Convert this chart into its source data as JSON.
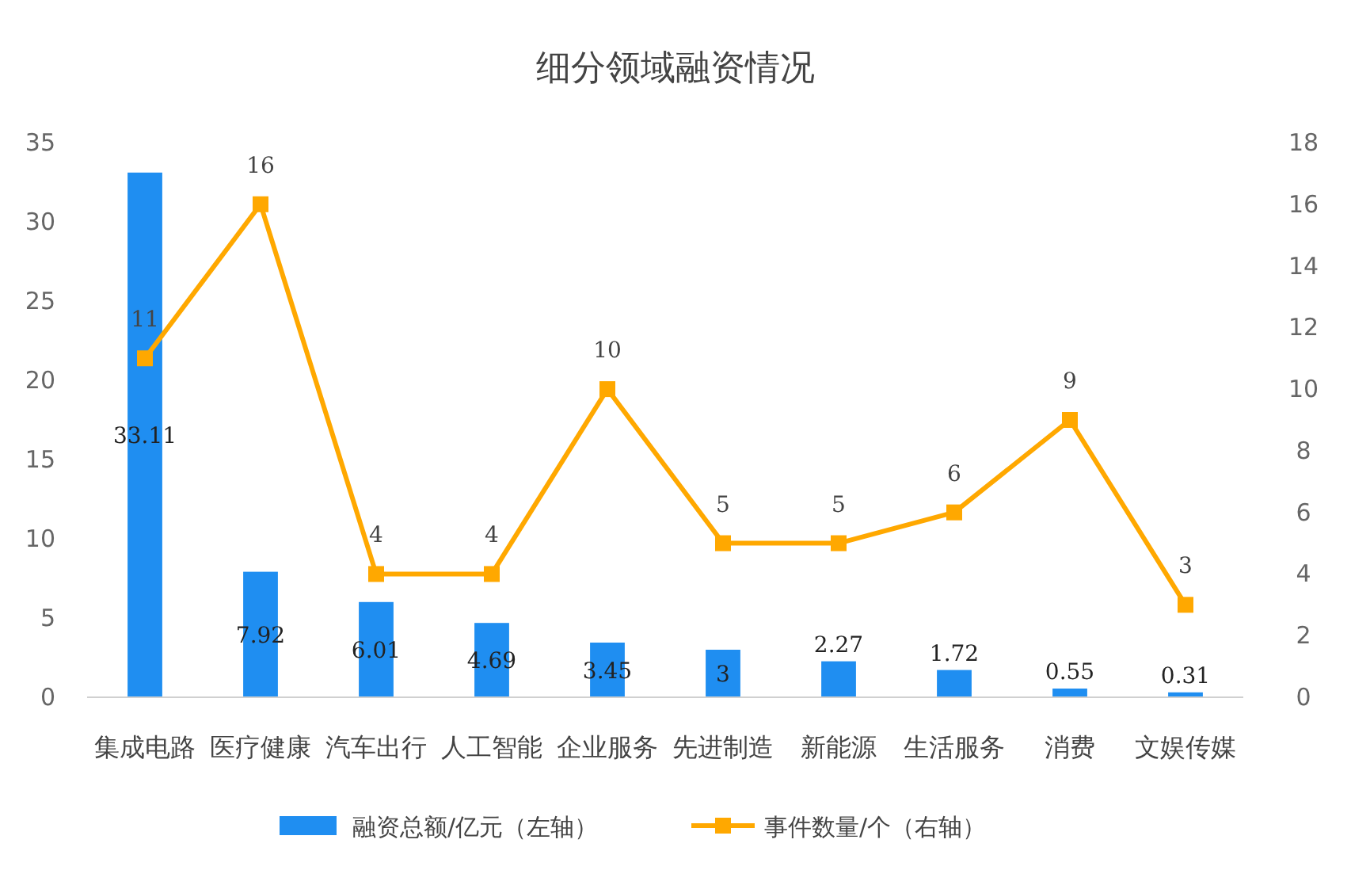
{
  "chart_data": {
    "type": "bar",
    "title": "细分领域融资情况",
    "categories": [
      "集成电路",
      "医疗健康",
      "汽车出行",
      "人工智能",
      "企业服务",
      "先进制造",
      "新能源",
      "生活服务",
      "消费",
      "文娱传媒"
    ],
    "series": [
      {
        "name": "融资总额/亿元（左轴）",
        "color": "#1f8ef1",
        "values": [
          33.11,
          7.92,
          6.01,
          4.69,
          3.45,
          3,
          2.27,
          1.72,
          0.55,
          0.31
        ]
      },
      {
        "name": "事件数量/个（右轴）",
        "type": "line",
        "axis": "y2",
        "color": "#ffa800",
        "marker": "square",
        "values": [
          11,
          16,
          4,
          4,
          10,
          5,
          5,
          6,
          9,
          3
        ]
      }
    ],
    "ylim": [
      0,
      35
    ],
    "yticks": [
      0,
      5,
      10,
      15,
      20,
      25,
      30,
      35
    ],
    "y2lim": [
      0,
      18
    ],
    "y2ticks": [
      0,
      2,
      4,
      6,
      8,
      10,
      12,
      14,
      16,
      18
    ],
    "data_labels": true,
    "grid": false,
    "legend": "bottom"
  }
}
